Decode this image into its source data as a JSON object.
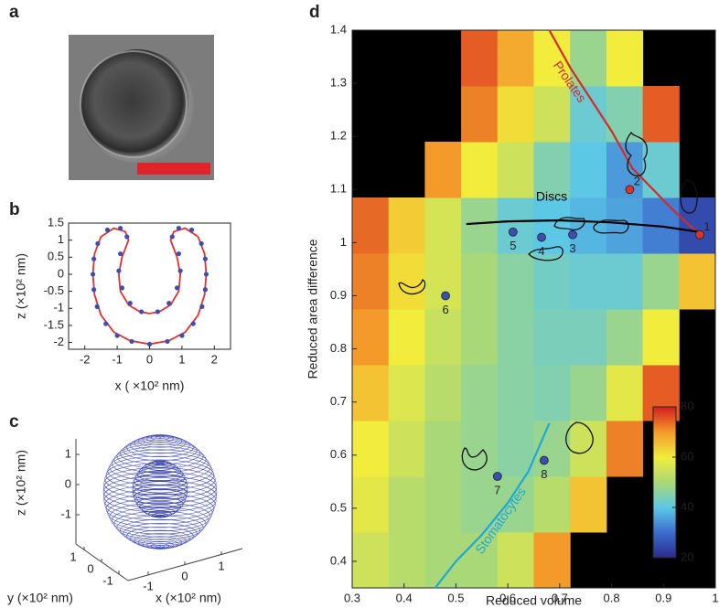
{
  "chart_data": [
    {
      "type": "image",
      "panel_label": "a"
    },
    {
      "type": "line",
      "panel_label": "b",
      "xlabel": "x ( ×10² nm)",
      "ylabel": "z (×10² nm)",
      "xlim": [
        -2.5,
        2.5
      ],
      "ylim": [
        -2.2,
        1.5
      ],
      "xticks": [
        -2,
        -1,
        0,
        1,
        2
      ],
      "yticks": [
        -2,
        -1.5,
        -1,
        -0.5,
        0,
        0.5,
        1,
        1.5
      ],
      "series": [
        {
          "color": "#e03030",
          "marker": "line",
          "x": [
            1.5,
            1.7,
            1.75,
            1.7,
            1.5,
            1.1,
            0.6,
            0,
            -0.6,
            -1.1,
            -1.5,
            -1.7,
            -1.75,
            -1.7,
            -1.5,
            -1.1,
            -0.75,
            -0.65,
            -0.85,
            -0.95,
            -0.9,
            -0.65,
            -0.3,
            0,
            0.3,
            0.65,
            0.9,
            0.95,
            0.85,
            0.65,
            0.75,
            1.1,
            1.5
          ],
          "y": [
            1.1,
            0.6,
            0,
            -0.6,
            -1.2,
            -1.7,
            -1.95,
            -2.05,
            -1.95,
            -1.7,
            -1.2,
            -0.6,
            0,
            0.6,
            1.1,
            1.35,
            1.25,
            1.0,
            0.5,
            0,
            -0.5,
            -0.9,
            -1.1,
            -1.15,
            -1.1,
            -0.9,
            -0.5,
            0,
            0.5,
            1.0,
            1.25,
            1.35,
            1.1
          ]
        },
        {
          "color": "#3a4fb0",
          "marker": "dot",
          "x": [
            1.6,
            1.72,
            1.75,
            1.72,
            1.62,
            1.35,
            1.0,
            0.55,
            0,
            -0.55,
            -1.0,
            -1.35,
            -1.62,
            -1.72,
            -1.75,
            -1.72,
            -1.6,
            -1.3,
            -0.9,
            -0.7,
            -0.9,
            -0.95,
            -0.85,
            -0.6,
            -0.25,
            0.25,
            0.6,
            0.85,
            0.95,
            0.9,
            0.7,
            0.9,
            1.3
          ],
          "y": [
            0.9,
            0.45,
            0,
            -0.45,
            -0.95,
            -1.45,
            -1.8,
            -1.97,
            -2.05,
            -1.97,
            -1.8,
            -1.45,
            -0.95,
            -0.45,
            0,
            0.45,
            0.9,
            1.3,
            1.35,
            1.1,
            0.6,
            0.1,
            -0.4,
            -0.85,
            -1.1,
            -1.1,
            -0.85,
            -0.4,
            0.1,
            0.6,
            1.1,
            1.35,
            1.3
          ]
        }
      ]
    },
    {
      "type": "mesh3d",
      "panel_label": "c",
      "xlabel": "x (×10² nm)",
      "ylabel": "y (×10² nm)",
      "zlabel": "z (×10² nm)",
      "xticks": [
        -1,
        0,
        1
      ],
      "yticks": [
        -1,
        0,
        1
      ],
      "zticks": [
        -1,
        0,
        1
      ]
    },
    {
      "type": "heatmap",
      "panel_label": "d",
      "xlabel": "Reduced volume",
      "ylabel": "Reduced area difference",
      "xlim": [
        0.3,
        1
      ],
      "ylim": [
        0.35,
        1.4
      ],
      "xticks": [
        0.3,
        0.4,
        0.5,
        0.6,
        0.7,
        0.8,
        0.9,
        1
      ],
      "yticks": [
        0.4,
        0.5,
        0.6,
        0.7,
        0.8,
        0.9,
        1.0,
        1.1,
        1.2,
        1.3,
        1.4
      ],
      "x_edges": [
        0.3,
        0.37,
        0.44,
        0.51,
        0.58,
        0.65,
        0.72,
        0.79,
        0.86,
        0.93,
        1
      ],
      "y_edges": [
        0.35,
        0.455,
        0.56,
        0.665,
        0.77,
        0.875,
        0.98,
        1.085,
        1.19,
        1.295,
        1.4
      ],
      "values": [
        [
          55,
          52,
          50,
          50,
          55,
          70,
          null,
          null,
          null,
          null
        ],
        [
          58,
          52,
          50,
          48,
          48,
          52,
          65,
          null,
          null,
          null
        ],
        [
          60,
          55,
          50,
          48,
          46,
          48,
          55,
          72,
          null,
          null
        ],
        [
          65,
          57,
          52,
          48,
          46,
          45,
          48,
          58,
          75,
          null
        ],
        [
          70,
          60,
          54,
          50,
          46,
          44,
          44,
          48,
          60,
          null
        ],
        [
          72,
          62,
          56,
          50,
          46,
          43,
          42,
          42,
          48,
          65
        ],
        [
          74,
          64,
          56,
          48,
          42,
          40,
          38,
          36,
          32,
          25
        ],
        [
          null,
          null,
          70,
          60,
          55,
          45,
          40,
          35,
          42,
          null
        ],
        [
          null,
          null,
          null,
          72,
          62,
          55,
          42,
          45,
          75,
          null
        ],
        [
          null,
          null,
          null,
          75,
          68,
          60,
          48,
          60,
          null,
          null
        ]
      ],
      "clim": [
        20,
        80
      ],
      "cticks": [
        20,
        40,
        60,
        80
      ],
      "colormap": [
        "#2a2a8c",
        "#3b6ccc",
        "#5cc8e6",
        "#a8d878",
        "#f2ec3c",
        "#f39a2a",
        "#d61f1f"
      ],
      "curves": [
        {
          "label": "Prolates",
          "color": "#d42a2a",
          "x": [
            0.68,
            0.72,
            0.76,
            0.8,
            0.84,
            0.88,
            0.92,
            0.97
          ],
          "y": [
            1.4,
            1.33,
            1.27,
            1.21,
            1.14,
            1.1,
            1.06,
            1.015
          ]
        },
        {
          "label": "Discs",
          "color": "#000000",
          "x": [
            0.52,
            0.6,
            0.7,
            0.8,
            0.9,
            0.97
          ],
          "y": [
            1.035,
            1.04,
            1.042,
            1.038,
            1.03,
            1.02
          ]
        },
        {
          "label": "Stomatocytes",
          "color": "#1ea8d8",
          "x": [
            0.46,
            0.5,
            0.55,
            0.6,
            0.64,
            0.68
          ],
          "y": [
            0.35,
            0.4,
            0.45,
            0.51,
            0.57,
            0.66
          ]
        }
      ],
      "points": [
        {
          "label": "1",
          "x": 0.97,
          "y": 1.015,
          "color": "#e0302a"
        },
        {
          "label": "2",
          "x": 0.835,
          "y": 1.1,
          "color": "#e0302a"
        },
        {
          "label": "3",
          "x": 0.725,
          "y": 1.015,
          "color": "#3a4fb0"
        },
        {
          "label": "4",
          "x": 0.665,
          "y": 1.01,
          "color": "#3a4fb0"
        },
        {
          "label": "5",
          "x": 0.61,
          "y": 1.02,
          "color": "#3a4fb0"
        },
        {
          "label": "6",
          "x": 0.48,
          "y": 0.9,
          "color": "#3a4fb0"
        },
        {
          "label": "7",
          "x": 0.58,
          "y": 0.56,
          "color": "#3a4fb0"
        },
        {
          "label": "8",
          "x": 0.67,
          "y": 0.59,
          "color": "#3a4fb0"
        }
      ]
    }
  ]
}
